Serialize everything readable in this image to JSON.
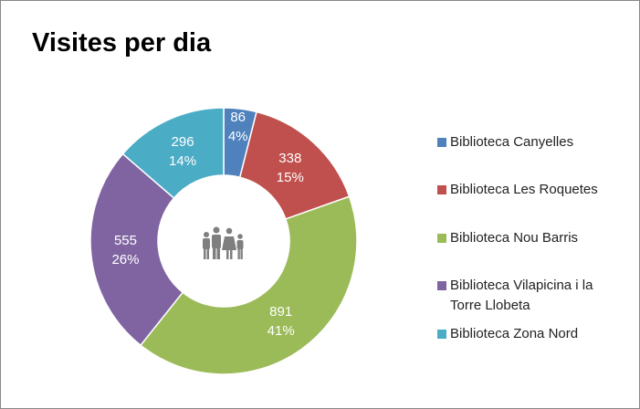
{
  "chart_data": {
    "type": "donut",
    "title": "Visites per dia",
    "categories": [
      "Biblioteca Canyelles",
      "Biblioteca Les Roquetes",
      "Biblioteca Nou Barris",
      "Biblioteca Vilapicina i la Torre Llobeta",
      "Biblioteca Zona Nord"
    ],
    "values": [
      86,
      338,
      891,
      555,
      296
    ],
    "percent_labels": [
      "4%",
      "15%",
      "41%",
      "26%",
      "14%"
    ],
    "colors": [
      "#4f81bd",
      "#c0504d",
      "#9bbb59",
      "#8064a2",
      "#4bacc6"
    ],
    "legend": "right"
  }
}
